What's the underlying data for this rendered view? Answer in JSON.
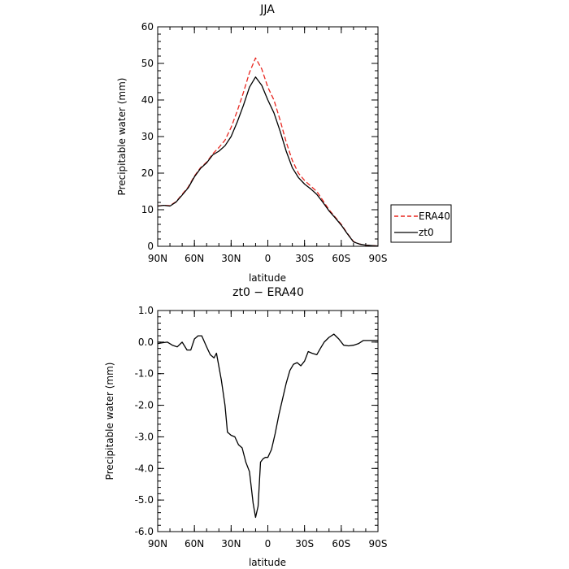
{
  "chart_data": [
    {
      "type": "line",
      "title": "JJA",
      "xlabel": "latitude",
      "ylabel": "Precipitable water (mm)",
      "xlim": [
        90,
        -90
      ],
      "ylim": [
        0,
        60
      ],
      "yticks": [
        0,
        10,
        20,
        30,
        40,
        50,
        60
      ],
      "ytick_labels": [
        "0",
        "10",
        "20",
        "30",
        "40",
        "50",
        "60"
      ],
      "xticks": [
        90,
        60,
        30,
        0,
        -30,
        -60,
        -90
      ],
      "xtick_labels": [
        "90N",
        "60N",
        "30N",
        "0",
        "30S",
        "60S",
        "90S"
      ],
      "grid": false,
      "legend": "right, outside plot",
      "series": [
        {
          "name": "ERA40",
          "color": "#e8261f",
          "style": "dashed",
          "x": [
            90,
            85,
            80,
            75,
            70,
            65,
            60,
            55,
            50,
            45,
            40,
            35,
            30,
            25,
            20,
            15,
            10,
            5,
            0,
            -5,
            -10,
            -15,
            -20,
            -25,
            -30,
            -35,
            -40,
            -45,
            -50,
            -55,
            -60,
            -65,
            -70,
            -75,
            -80,
            -85,
            -90
          ],
          "values": [
            11.0,
            11.2,
            11.1,
            12.2,
            14.2,
            16.2,
            19.2,
            21.5,
            23.0,
            25.3,
            27.0,
            29.0,
            32.5,
            37.0,
            42.0,
            47.5,
            51.5,
            48.5,
            43.5,
            40.0,
            34.5,
            28.5,
            23.5,
            20.0,
            18.0,
            16.5,
            15.0,
            12.5,
            10.0,
            8.0,
            6.0,
            3.5,
            1.3,
            0.6,
            0.3,
            0.2,
            0.1
          ]
        },
        {
          "name": "zt0",
          "color": "#000000",
          "style": "solid",
          "x": [
            90,
            85,
            80,
            75,
            70,
            65,
            60,
            55,
            50,
            45,
            40,
            35,
            30,
            25,
            20,
            15,
            10,
            5,
            0,
            -5,
            -10,
            -15,
            -20,
            -25,
            -30,
            -35,
            -40,
            -45,
            -50,
            -55,
            -60,
            -65,
            -70,
            -75,
            -80,
            -85,
            -90
          ],
          "values": [
            11.0,
            11.2,
            11.0,
            12.1,
            14.0,
            16.0,
            19.0,
            21.3,
            22.8,
            25.0,
            26.0,
            27.5,
            30.0,
            34.0,
            38.5,
            43.5,
            46.3,
            44.0,
            40.0,
            36.5,
            31.5,
            26.0,
            21.5,
            18.8,
            17.0,
            15.7,
            14.2,
            12.0,
            9.7,
            7.8,
            5.8,
            3.4,
            1.2,
            0.6,
            0.3,
            0.2,
            0.1
          ]
        }
      ]
    },
    {
      "type": "line",
      "title": "zt0 − ERA40",
      "xlabel": "latitude",
      "ylabel": "Precipitable water (mm)",
      "xlim": [
        90,
        -90
      ],
      "ylim": [
        -6,
        1
      ],
      "yticks": [
        1,
        0,
        -1,
        -2,
        -3,
        -4,
        -5,
        -6
      ],
      "ytick_labels": [
        "1.0",
        "0.0",
        "-1.0",
        "-2.0",
        "-3.0",
        "-4.0",
        "-5.0",
        "-6.0"
      ],
      "xticks": [
        90,
        60,
        30,
        0,
        -30,
        -60,
        -90
      ],
      "xtick_labels": [
        "90N",
        "60N",
        "30N",
        "0",
        "30S",
        "60S",
        "90S"
      ],
      "grid": false,
      "series": [
        {
          "color": "#000000",
          "style": "solid",
          "x": [
            90,
            86,
            82,
            78,
            74,
            70,
            66,
            63,
            60,
            57,
            54,
            50,
            47,
            44,
            42,
            38,
            35,
            33,
            30,
            27,
            24,
            21,
            18,
            15,
            12,
            10,
            8,
            6,
            4,
            2,
            0,
            -3,
            -6,
            -9,
            -12,
            -15,
            -18,
            -21,
            -24,
            -27,
            -30,
            -33,
            -36,
            -40,
            -43,
            -46,
            -50,
            -54,
            -58,
            -62,
            -66,
            -70,
            -74,
            -78,
            -82,
            -86,
            -90
          ],
          "values": [
            -0.05,
            -0.02,
            0.0,
            -0.1,
            -0.15,
            0.0,
            -0.25,
            -0.25,
            0.1,
            0.2,
            0.2,
            -0.15,
            -0.4,
            -0.5,
            -0.35,
            -1.2,
            -2.0,
            -2.85,
            -2.95,
            -3.0,
            -3.25,
            -3.35,
            -3.8,
            -4.1,
            -5.1,
            -5.55,
            -5.2,
            -3.8,
            -3.7,
            -3.65,
            -3.65,
            -3.4,
            -2.9,
            -2.3,
            -1.8,
            -1.3,
            -0.9,
            -0.7,
            -0.65,
            -0.75,
            -0.6,
            -0.3,
            -0.35,
            -0.4,
            -0.2,
            0.0,
            0.15,
            0.25,
            0.1,
            -0.1,
            -0.12,
            -0.1,
            -0.05,
            0.05,
            0.05,
            0.05,
            0.05
          ]
        }
      ]
    }
  ]
}
